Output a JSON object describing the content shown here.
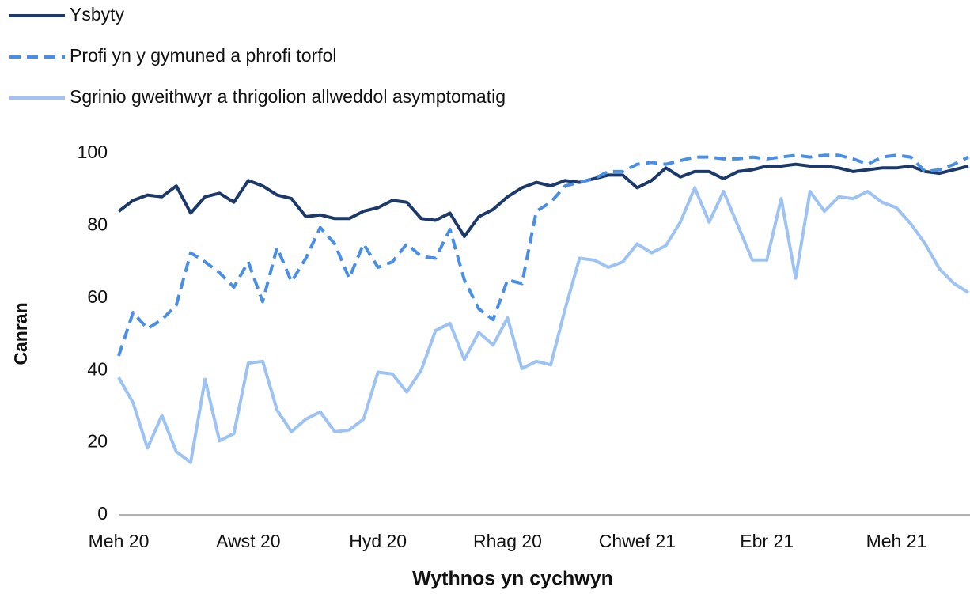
{
  "chart_data": {
    "type": "line",
    "y_label": "Canran",
    "x_label": "Wythnos yn cychwyn",
    "categories": [
      "Meh 20",
      null,
      null,
      null,
      null,
      null,
      null,
      null,
      null,
      "Awst 20",
      null,
      null,
      null,
      null,
      null,
      null,
      null,
      null,
      "Hyd 20",
      null,
      null,
      null,
      null,
      null,
      null,
      null,
      null,
      "Rhag 20",
      null,
      null,
      null,
      null,
      null,
      null,
      null,
      null,
      "Chwef 21",
      null,
      null,
      null,
      null,
      null,
      null,
      null,
      null,
      "Ebr 21",
      null,
      null,
      null,
      null,
      null,
      null,
      null,
      null,
      "Meh 21",
      null,
      null,
      null,
      null,
      null
    ],
    "series": [
      {
        "name": "Ysbyty",
        "color": "#1b3a6b",
        "dash": false,
        "values": [
          84,
          87,
          88.5,
          88,
          91,
          83.5,
          88,
          89,
          86.5,
          92.5,
          91,
          88.5,
          87.5,
          82.5,
          83,
          82,
          82,
          84,
          85,
          87,
          86.5,
          82,
          81.5,
          83.5,
          77,
          82.5,
          84.5,
          88,
          90.5,
          92,
          91,
          92.5,
          92,
          93,
          94,
          94,
          90.5,
          92.5,
          96,
          93.5,
          95,
          95,
          93,
          95,
          95.5,
          96.5,
          96.5,
          97,
          96.5,
          96.5,
          96,
          95,
          95.5,
          96,
          96,
          96.5,
          95,
          94.5,
          95.5,
          96.5
        ]
      },
      {
        "name": "Profi yn y gymuned a phrofi torfol",
        "color": "#4a8fe7",
        "dash": true,
        "values": [
          44,
          56,
          51.5,
          54,
          58,
          72.5,
          70,
          67,
          63,
          70,
          59,
          74,
          64.5,
          71,
          79.5,
          75,
          65.5,
          75,
          68.5,
          70,
          75,
          71.5,
          71,
          79,
          65,
          57,
          54,
          65,
          64,
          84,
          86.5,
          91,
          92,
          93,
          95,
          95,
          97,
          97.5,
          97,
          98,
          99,
          99,
          98.5,
          98.5,
          99,
          98.5,
          99,
          99.5,
          99,
          99.5,
          99.5,
          98.5,
          97,
          99,
          99.5,
          99,
          95,
          95.5,
          97,
          99
        ]
      },
      {
        "name": "Sgrinio gweithwyr a thrigolion allweddol asymptomatig",
        "color": "#9dc3f4",
        "dash": false,
        "values": [
          38,
          31,
          18.5,
          27.5,
          17.5,
          14.5,
          37.5,
          20.5,
          22.5,
          42,
          42.5,
          29,
          23,
          26.5,
          28.5,
          23,
          23.5,
          26.5,
          39.5,
          39,
          34,
          40,
          51,
          53,
          43,
          50.5,
          47,
          54.5,
          40.5,
          42.5,
          41.5,
          57,
          71,
          70.5,
          68.5,
          70,
          75,
          72.5,
          74.5,
          81,
          90.5,
          81,
          89.5,
          80,
          70.5,
          70.5,
          87.5,
          65.5,
          89.5,
          84,
          88,
          87.5,
          89.5,
          86.5,
          85,
          80.5,
          75,
          68,
          64,
          61.5
        ]
      }
    ],
    "ylim": [
      0,
      100
    ],
    "yticks": [
      0,
      20,
      40,
      60,
      80,
      100
    ],
    "grid": false
  }
}
